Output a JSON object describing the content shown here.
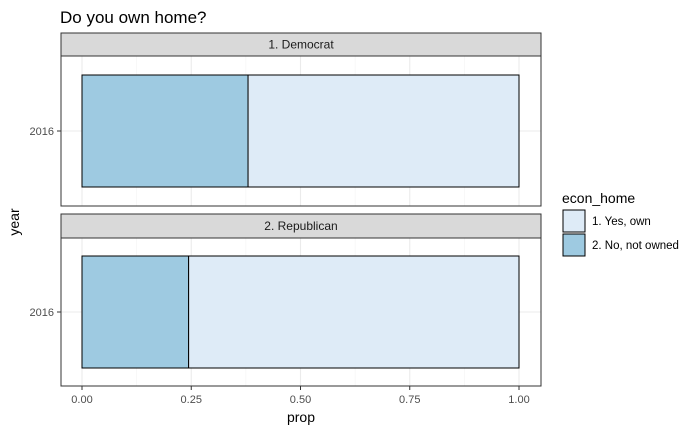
{
  "chart_data": {
    "type": "bar",
    "orientation": "horizontal",
    "stacked": true,
    "title": "Do you own home?",
    "xlabel": "prop",
    "ylabel": "year",
    "xlim": [
      0,
      1
    ],
    "x_ticks": [
      0,
      0.25,
      0.5,
      0.75,
      1
    ],
    "x_tick_labels": [
      "0.00",
      "0.25",
      "0.50",
      "0.75",
      "1.00"
    ],
    "grid": true,
    "legend": {
      "title": "econ_home",
      "position": "right",
      "entries": [
        {
          "label": "1. Yes, own",
          "color": "#deebf7"
        },
        {
          "label": "2. No, not owned",
          "color": "#9ecae1"
        }
      ]
    },
    "panels": [
      {
        "strip": "1. Democrat",
        "categories": [
          "2016"
        ],
        "series": [
          {
            "name": "2. No, not owned",
            "values": [
              0.38
            ]
          },
          {
            "name": "1. Yes, own",
            "values": [
              0.62
            ]
          }
        ]
      },
      {
        "strip": "2. Republican",
        "categories": [
          "2016"
        ],
        "series": [
          {
            "name": "2. No, not owned",
            "values": [
              0.244
            ]
          },
          {
            "name": "1. Yes, own",
            "values": [
              0.756
            ]
          }
        ]
      }
    ]
  }
}
